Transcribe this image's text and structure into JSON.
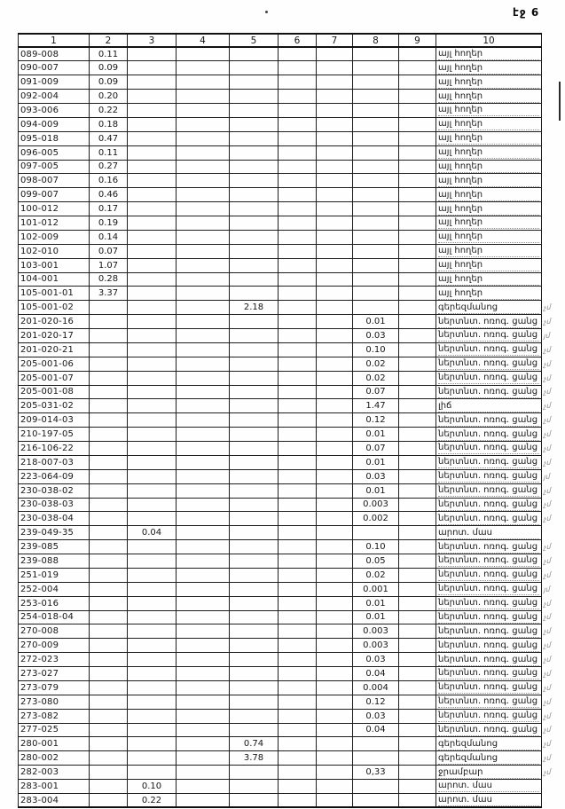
{
  "page": {
    "label": "էջ 6"
  },
  "table": {
    "headers": [
      "1",
      "2",
      "3",
      "4",
      "5",
      "6",
      "7",
      "8",
      "9",
      "10"
    ],
    "rows": [
      {
        "code": "089-008",
        "val_col": 2,
        "val": "0.11",
        "use": "այլ հողեր",
        "note": ""
      },
      {
        "code": "090-007",
        "val_col": 2,
        "val": "0.09",
        "use": "այլ հողեր",
        "note": ""
      },
      {
        "code": "091-009",
        "val_col": 2,
        "val": "0.09",
        "use": "այլ հողեր",
        "note": ""
      },
      {
        "code": "092-004",
        "val_col": 2,
        "val": "0.20",
        "use": "այլ հողեր",
        "note": ""
      },
      {
        "code": "093-006",
        "val_col": 2,
        "val": "0.22",
        "use": "այլ հողեր",
        "note": ""
      },
      {
        "code": "094-009",
        "val_col": 2,
        "val": "0.18",
        "use": "այլ հողեր",
        "note": ""
      },
      {
        "code": "095-018",
        "val_col": 2,
        "val": "0.47",
        "use": "այլ հողեր",
        "note": ""
      },
      {
        "code": "096-005",
        "val_col": 2,
        "val": "0.11",
        "use": "այլ հողեր",
        "note": ""
      },
      {
        "code": "097-005",
        "val_col": 2,
        "val": "0.27",
        "use": "այլ հողեր",
        "note": ""
      },
      {
        "code": "098-007",
        "val_col": 2,
        "val": "0.16",
        "use": "այլ հողեր",
        "note": ""
      },
      {
        "code": "099-007",
        "val_col": 2,
        "val": "0.46",
        "use": "այլ հողեր",
        "note": ""
      },
      {
        "code": "100-012",
        "val_col": 2,
        "val": "0.17",
        "use": "այլ հողեր",
        "note": ""
      },
      {
        "code": "101-012",
        "val_col": 2,
        "val": "0.19",
        "use": "այլ հողեր",
        "note": ""
      },
      {
        "code": "102-009",
        "val_col": 2,
        "val": "0.14",
        "use": "այլ հողեր",
        "note": ""
      },
      {
        "code": "102-010",
        "val_col": 2,
        "val": "0.07",
        "use": "այլ հողեր",
        "note": ""
      },
      {
        "code": "103-001",
        "val_col": 2,
        "val": "1.07",
        "use": "այլ հողեր",
        "note": ""
      },
      {
        "code": "104-001",
        "val_col": 2,
        "val": "0.28",
        "use": "այլ հողեր",
        "note": ""
      },
      {
        "code": "105-001-01",
        "val_col": 2,
        "val": "3.37",
        "use": "այլ հողեր",
        "note": ""
      },
      {
        "code": "105-001-02",
        "val_col": 5,
        "val": "2.18",
        "use": "գերեզմանոց",
        "note": "չմ"
      },
      {
        "code": "201-020-16",
        "val_col": 8,
        "val": "0.01",
        "use": "ներտնտ. ոռոգ. ցանց",
        "note": "չմ"
      },
      {
        "code": "201-020-17",
        "val_col": 8,
        "val": "0.03",
        "use": "ներտնտ. ոռոգ. ցանց",
        "note": "յմ"
      },
      {
        "code": "201-020-21",
        "val_col": 8,
        "val": "0.10",
        "use": "ներտնտ. ոռոգ. ցանց",
        "note": "չմ"
      },
      {
        "code": "205-001-06",
        "val_col": 8,
        "val": "0.02",
        "use": "ներտնտ. ոռոգ. ցանց",
        "note": "չմ"
      },
      {
        "code": "205-001-07",
        "val_col": 8,
        "val": "0.02",
        "use": "ներտնտ. ոռոգ. ցանց",
        "note": "չմ"
      },
      {
        "code": "205-001-08",
        "val_col": 8,
        "val": "0.07",
        "use": "ներտնտ. ոռոգ. ցանց",
        "note": "չմ"
      },
      {
        "code": "205-031-02",
        "val_col": 8,
        "val": "1.47",
        "use": "լիճ",
        "note": "չմ"
      },
      {
        "code": "209-014-03",
        "val_col": 8,
        "val": "0.12",
        "use": "ներտնտ. ոռոգ. ցանց",
        "note": "չմ"
      },
      {
        "code": "210-197-05",
        "val_col": 8,
        "val": "0.01",
        "use": "ներտնտ. ոռոգ. ցանց",
        "note": "չմ"
      },
      {
        "code": "216-106-22",
        "val_col": 8,
        "val": "0.07",
        "use": "ներտնտ. ոռոգ. ցանց",
        "note": "չմ"
      },
      {
        "code": "218-007-03",
        "val_col": 8,
        "val": "0.01",
        "use": "ներտնտ. ոռոգ. ցանց",
        "note": "չմ"
      },
      {
        "code": "223-064-09",
        "val_col": 8,
        "val": "0.03",
        "use": "ներտնտ. ոռոգ. ցանց",
        "note": "յմ"
      },
      {
        "code": "230-038-02",
        "val_col": 8,
        "val": "0.01",
        "use": "ներտնտ. ոռոգ. ցանց",
        "note": "չմ"
      },
      {
        "code": "230-038-03",
        "val_col": 8,
        "val": "0.003",
        "use": "ներտնտ. ոռոգ. ցանց",
        "note": "չմ"
      },
      {
        "code": "230-038-04",
        "val_col": 8,
        "val": "0.002",
        "use": "ներտնտ. ոռոգ. ցանց",
        "note": "չմ"
      },
      {
        "code": "239-049-35",
        "val_col": 3,
        "val": "0.04",
        "use": "արոտ. մաս",
        "note": ""
      },
      {
        "code": "239-085",
        "val_col": 8,
        "val": "0.10",
        "use": "ներտնտ. ոռոգ. ցանց",
        "note": "չմ"
      },
      {
        "code": "239-088",
        "val_col": 8,
        "val": "0.05",
        "use": "ներտնտ. ոռոգ. ցանց",
        "note": "չմ"
      },
      {
        "code": "251-019",
        "val_col": 8,
        "val": "0.02",
        "use": "ներտնտ. ոռոգ. ցանց",
        "note": "չմ"
      },
      {
        "code": "252-004",
        "val_col": 8,
        "val": "0.001",
        "use": "ներտնտ. ոռոգ. ցանց",
        "note": "յմ"
      },
      {
        "code": "253-016",
        "val_col": 8,
        "val": "0.01",
        "use": "ներտնտ. ոռոգ. ցանց",
        "note": "չմ"
      },
      {
        "code": "254-018-04",
        "val_col": 8,
        "val": "0.01",
        "use": "ներտնտ. ոռոգ. ցանց",
        "note": "չմ"
      },
      {
        "code": "270-008",
        "val_col": 8,
        "val": "0.003",
        "use": "ներտնտ. ոռոգ. ցանց",
        "note": "չմ"
      },
      {
        "code": "270-009",
        "val_col": 8,
        "val": "0.003",
        "use": "ներտնտ. ոռոգ. ցանց",
        "note": "չմ"
      },
      {
        "code": "272-023",
        "val_col": 8,
        "val": "0.03",
        "use": "ներտնտ. ոռոգ. ցանց",
        "note": "չմ"
      },
      {
        "code": "273-027",
        "val_col": 8,
        "val": "0.04",
        "use": "ներտնտ. ոռոգ. ցանց",
        "note": "չմ"
      },
      {
        "code": "273-079",
        "val_col": 8,
        "val": "0.004",
        "use": "ներտնտ. ոռոգ. ցանց",
        "note": "չմ"
      },
      {
        "code": "273-080",
        "val_col": 8,
        "val": "0.12",
        "use": "ներտնտ. ոռոգ. ցանց",
        "note": "չմ"
      },
      {
        "code": "273-082",
        "val_col": 8,
        "val": "0.03",
        "use": "ներտնտ. ոռոգ. ցանց",
        "note": "չմ"
      },
      {
        "code": "277-025",
        "val_col": 8,
        "val": "0.04",
        "use": "ներտնտ. ոռոգ. ցանց",
        "note": "չմ"
      },
      {
        "code": "280-001",
        "val_col": 5,
        "val": "0.74",
        "use": "գերեզմանոց",
        "note": "չմ"
      },
      {
        "code": "280-002",
        "val_col": 5,
        "val": "3.78",
        "use": "գերեզմանոց",
        "note": "չմ"
      },
      {
        "code": "282-003",
        "val_col": 8,
        "val": "0,33",
        "use": "ջրամբար",
        "note": "չմ"
      },
      {
        "code": "283-001",
        "val_col": 3,
        "val": "0.10",
        "use": "արոտ. մաս",
        "note": ""
      },
      {
        "code": "283-004",
        "val_col": 3,
        "val": "0.22",
        "use": "արոտ. մաս",
        "note": ""
      }
    ]
  }
}
